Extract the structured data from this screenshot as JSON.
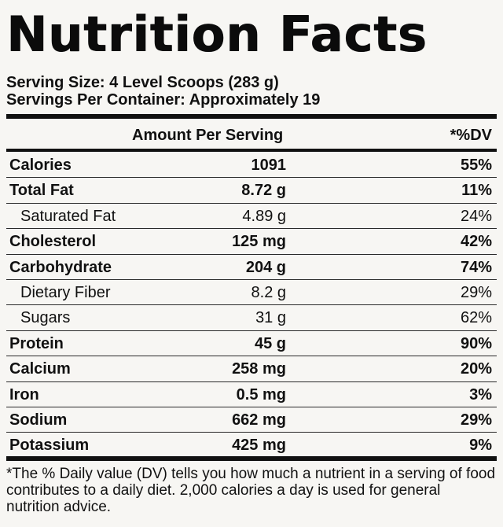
{
  "title": "Nutrition Facts",
  "serving_size": "Serving Size: 4 Level Scoops (283 g)",
  "servings_per_container": "Servings Per Container: Approximately 19",
  "header": {
    "amount_per_serving": "Amount Per Serving",
    "dv": "*%DV"
  },
  "nutrients": [
    {
      "name": "Calories",
      "amount": "1091",
      "dv": "55%"
    },
    {
      "name": "Total Fat",
      "amount": "8.72 g",
      "dv": "11%"
    },
    {
      "name": "Saturated Fat",
      "amount": "4.89 g",
      "dv": "24%"
    },
    {
      "name": "Cholesterol",
      "amount": "125 mg",
      "dv": "42%"
    },
    {
      "name": "Carbohydrate",
      "amount": "204 g",
      "dv": "74%"
    },
    {
      "name": "Dietary Fiber",
      "amount": "8.2 g",
      "dv": "29%"
    },
    {
      "name": "Sugars",
      "amount": "31 g",
      "dv": "62%"
    },
    {
      "name": "Protein",
      "amount": "45 g",
      "dv": "90%"
    },
    {
      "name": "Calcium",
      "amount": "258 mg",
      "dv": "20%"
    },
    {
      "name": "Iron",
      "amount": "0.5 mg",
      "dv": "3%"
    },
    {
      "name": "Sodium",
      "amount": "662 mg",
      "dv": "29%"
    },
    {
      "name": "Potassium",
      "amount": "425 mg",
      "dv": "9%"
    }
  ],
  "footnote": "*The % Daily value (DV) tells you how much a nutrient in a serving of food contributes to a daily diet. 2,000 calories a day is used for general nutrition advice."
}
